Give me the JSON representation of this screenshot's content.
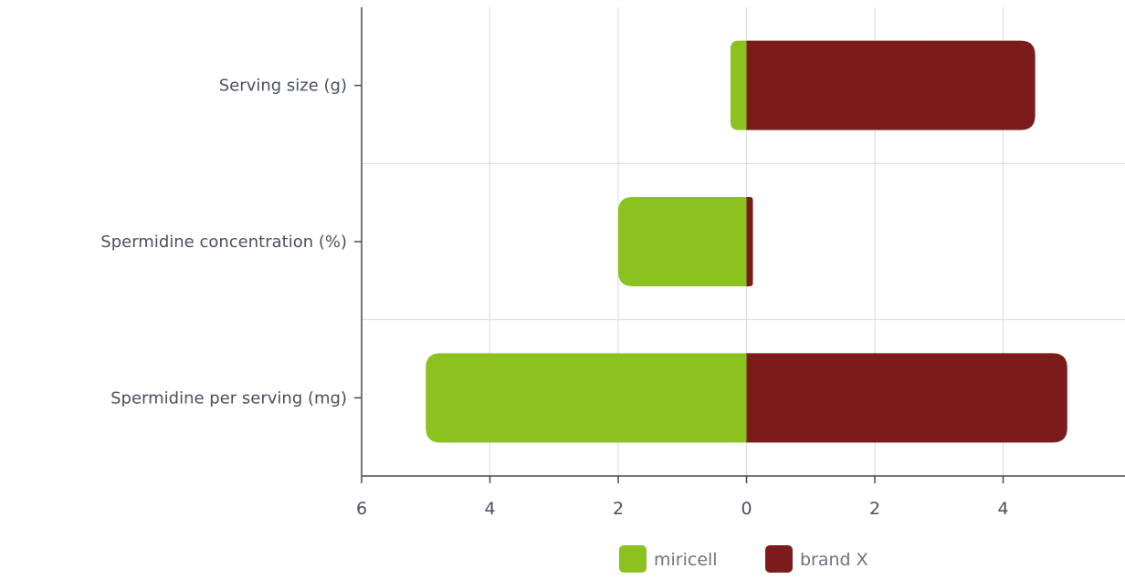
{
  "chart_data": {
    "type": "bar",
    "orientation": "horizontal",
    "diverging": true,
    "categories": [
      "Serving size (g)",
      "Spermidine concentration (%)",
      "Spermidine per serving (mg)"
    ],
    "series": [
      {
        "name": "miricell",
        "values": [
          0.25,
          2.0,
          5.0
        ],
        "direction": "left",
        "color": "#8cc21f"
      },
      {
        "name": "brand X",
        "values": [
          4.5,
          0.1,
          5.0
        ],
        "direction": "right",
        "color": "#7a1c1c"
      }
    ],
    "xlim": [
      -6,
      5.9
    ],
    "x_ticks": [
      -6,
      -4,
      -2,
      0,
      2,
      4
    ],
    "x_tick_labels": [
      "6",
      "4",
      "2",
      "0",
      "2",
      "4"
    ],
    "grid": true,
    "legend_position": "bottom-right",
    "title": "",
    "xlabel": "",
    "ylabel": ""
  }
}
